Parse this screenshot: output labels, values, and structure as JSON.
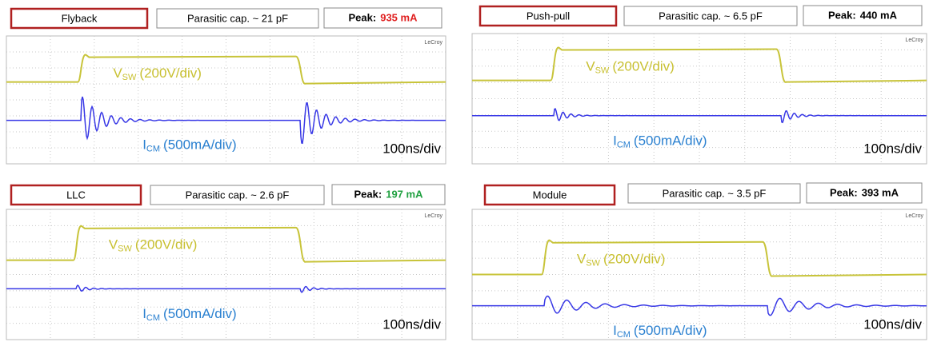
{
  "panels": [
    {
      "label": "Flyback",
      "parasitic": "Parasitic cap. ~ 21 pF",
      "peak_label": "Peak:",
      "peak_value": "935 mA",
      "peak_color": "#e02020",
      "brand": "LeCroy",
      "vsw": "V",
      "vsw_sub": "SW",
      "vsw_scale": "(200V/div)",
      "icm": "I",
      "icm_sub": "CM",
      "icm_scale": "(500mA/div)",
      "timebase": "100ns/div"
    },
    {
      "label": "Push-pull",
      "parasitic": "Parasitic cap. ~ 6.5 pF",
      "peak_label": "Peak:",
      "peak_value": "440 mA",
      "peak_color": "#000000",
      "brand": "LeCroy",
      "vsw": "V",
      "vsw_sub": "SW",
      "vsw_scale": "(200V/div)",
      "icm": "I",
      "icm_sub": "CM",
      "icm_scale": "(500mA/div)",
      "timebase": "100ns/div"
    },
    {
      "label": "LLC",
      "parasitic": "Parasitic cap. ~ 2.6 pF",
      "peak_label": "Peak:",
      "peak_value": "197 mA",
      "peak_color": "#20a040",
      "brand": "LeCroy",
      "vsw": "V",
      "vsw_sub": "SW",
      "vsw_scale": "(200V/div)",
      "icm": "I",
      "icm_sub": "CM",
      "icm_scale": "(500mA/div)",
      "timebase": "100ns/div"
    },
    {
      "label": "Module",
      "parasitic": "Parasitic cap. ~ 3.5 pF",
      "peak_label": "Peak:",
      "peak_value": "393 mA",
      "peak_color": "#000000",
      "brand": "LeCroy",
      "vsw": "V",
      "vsw_sub": "SW",
      "vsw_scale": "(200V/div)",
      "icm": "I",
      "icm_sub": "CM",
      "icm_scale": "(500mA/div)",
      "timebase": "100ns/div"
    }
  ]
}
